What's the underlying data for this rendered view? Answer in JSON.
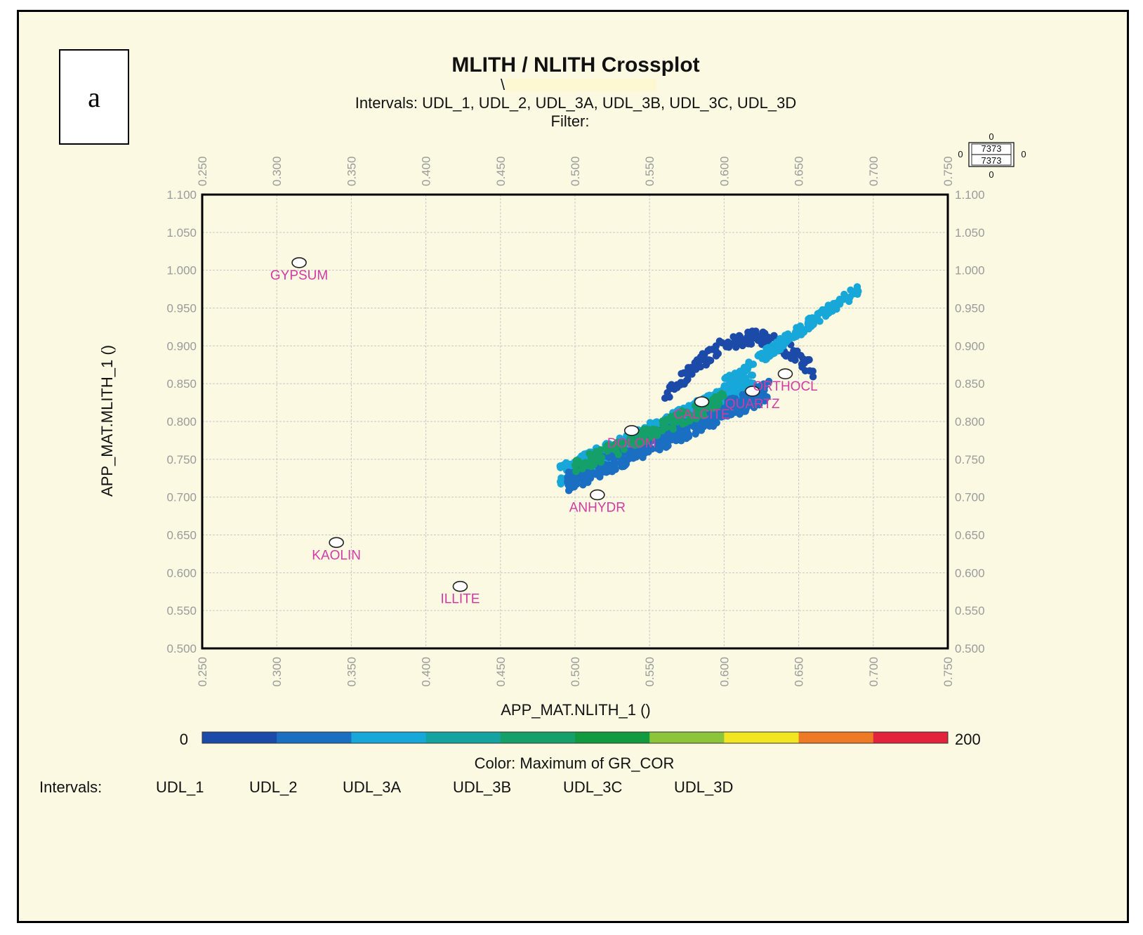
{
  "panel_label": "a",
  "chart_data": {
    "type": "scatter",
    "title": "MLITH / NLITH Crossplot",
    "subtitle_mark": "\\",
    "subtitle": "Intervals: UDL_1, UDL_2, UDL_3A, UDL_3B, UDL_3C, UDL_3D",
    "filter_label": "Filter:",
    "xlabel": "APP_MAT.NLITH_1 ()",
    "ylabel": "APP_MAT.MLITH_1 ()",
    "xlim": [
      0.25,
      0.75
    ],
    "ylim": [
      0.5,
      1.1
    ],
    "x_ticks": [
      "0.250",
      "0.300",
      "0.350",
      "0.400",
      "0.450",
      "0.500",
      "0.550",
      "0.600",
      "0.650",
      "0.700",
      "0.750"
    ],
    "y_ticks": [
      "1.100",
      "1.050",
      "1.000",
      "0.950",
      "0.900",
      "0.850",
      "0.800",
      "0.750",
      "0.700",
      "0.650",
      "0.600",
      "0.550",
      "0.500"
    ],
    "grid": true,
    "point_count": {
      "top": "0",
      "upper": "7373",
      "lower": "7373",
      "bottom": "0",
      "left": "0",
      "right": "0"
    },
    "mineral_points": [
      {
        "label": "GYPSUM",
        "x": 0.315,
        "y": 1.01
      },
      {
        "label": "KAOLIN",
        "x": 0.34,
        "y": 0.64
      },
      {
        "label": "ILLITE",
        "x": 0.423,
        "y": 0.582
      },
      {
        "label": "ANHYDR",
        "x": 0.515,
        "y": 0.703
      },
      {
        "label": "DOLOM",
        "x": 0.538,
        "y": 0.788
      },
      {
        "label": "CALCITE",
        "x": 0.585,
        "y": 0.826
      },
      {
        "label": "QUARTZ",
        "x": 0.619,
        "y": 0.84
      },
      {
        "label": "ORTHOCL",
        "x": 0.641,
        "y": 0.863
      }
    ],
    "color_scale": {
      "label": "Color: Maximum of GR_COR",
      "min": "0",
      "max": "200",
      "colors": [
        "#1c4aa8",
        "#1b6fc2",
        "#17a7d8",
        "#14a3a0",
        "#15a06a",
        "#119a3e",
        "#8cc43a",
        "#f2e521",
        "#ef7a25",
        "#e3223b"
      ]
    },
    "interval_legend": {
      "label": "Intervals:",
      "items": [
        "UDL_1",
        "UDL_2",
        "UDL_3A",
        "UDL_3B",
        "UDL_3C",
        "UDL_3D"
      ]
    },
    "clusters": [
      {
        "name": "main-cloud-lightblue",
        "color": "#17a7d8",
        "x": [
          0.49,
          0.62
        ],
        "y": [
          0.73,
          0.85
        ]
      },
      {
        "name": "main-cloud-blue",
        "color": "#1b6fc2",
        "x": [
          0.495,
          0.63
        ],
        "y": [
          0.72,
          0.84
        ]
      },
      {
        "name": "core-green",
        "color": "#15a06a",
        "x": [
          0.5,
          0.6
        ],
        "y": [
          0.74,
          0.83
        ]
      },
      {
        "name": "upper-arc-darkblue",
        "color": "#1c4aa8",
        "x": [
          0.56,
          0.66
        ],
        "y": [
          0.83,
          0.91
        ]
      },
      {
        "name": "upper-tail-lightblue",
        "color": "#17a7d8",
        "x": [
          0.6,
          0.69
        ],
        "y": [
          0.85,
          0.975
        ]
      }
    ]
  }
}
